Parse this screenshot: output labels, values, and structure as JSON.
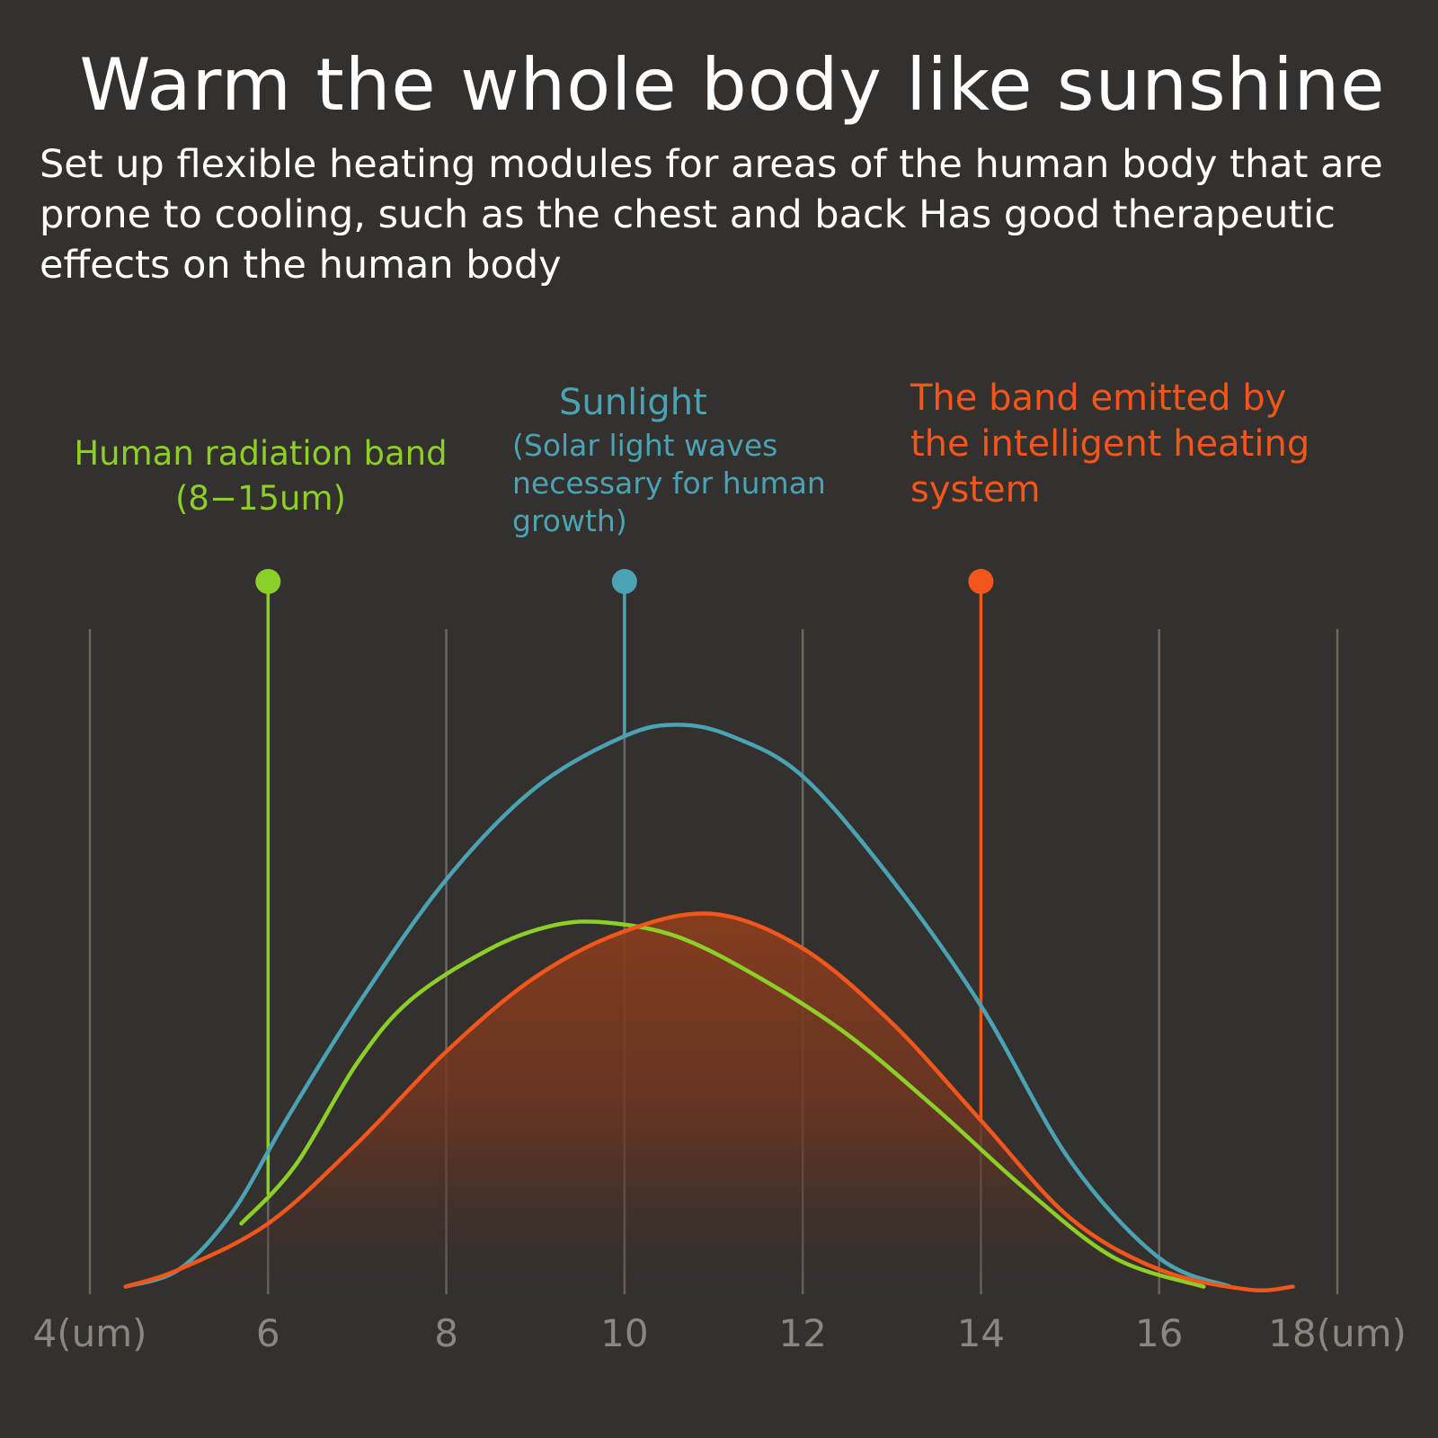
{
  "title": "Warm the whole body like sunshine",
  "subtitle": "Set up flexible heating modules for areas of the human body that are prone to cooling, such as the chest and back Has good therapeutic effects on the human body",
  "colors": {
    "background": "#34302d",
    "human": "#8ccf28",
    "sunlight": "#4aa3b4",
    "heating": "#f2561c",
    "grid": "#6a6663",
    "tick": "#8a8683"
  },
  "chart_data": {
    "type": "line",
    "title": "",
    "xlabel": "",
    "ylabel": "",
    "xlim": [
      4,
      18
    ],
    "xticks": [
      {
        "value": 4,
        "label": "4(um)"
      },
      {
        "value": 6,
        "label": "6"
      },
      {
        "value": 8,
        "label": "8"
      },
      {
        "value": 10,
        "label": "10"
      },
      {
        "value": 12,
        "label": "12"
      },
      {
        "value": 14,
        "label": "14"
      },
      {
        "value": 16,
        "label": "16"
      },
      {
        "value": 18,
        "label": "18(um)"
      }
    ],
    "grid": true,
    "y_axis_shown": false,
    "series": [
      {
        "key": "sunlight",
        "name": "Sunlight",
        "description": "(Solar light waves necessary for human growth)",
        "color": "#4aa3b4",
        "marker_x": 10,
        "fill": false,
        "points": [
          [
            4.4,
            0.01
          ],
          [
            5,
            0.04
          ],
          [
            5.6,
            0.14
          ],
          [
            6.2,
            0.3
          ],
          [
            7,
            0.5
          ],
          [
            8,
            0.72
          ],
          [
            9,
            0.88
          ],
          [
            10,
            0.97
          ],
          [
            10.6,
            0.99
          ],
          [
            11.2,
            0.97
          ],
          [
            12,
            0.9
          ],
          [
            13,
            0.72
          ],
          [
            14,
            0.5
          ],
          [
            15,
            0.23
          ],
          [
            16,
            0.06
          ],
          [
            16.8,
            0.01
          ]
        ]
      },
      {
        "key": "human",
        "name": "Human radiation band",
        "description": "(8−15um)",
        "color": "#8ccf28",
        "marker_x": 6,
        "fill": false,
        "points": [
          [
            5.7,
            0.12
          ],
          [
            6.3,
            0.22
          ],
          [
            7,
            0.4
          ],
          [
            7.6,
            0.51
          ],
          [
            8.5,
            0.6
          ],
          [
            9.2,
            0.64
          ],
          [
            9.8,
            0.645
          ],
          [
            10.6,
            0.62
          ],
          [
            11.5,
            0.55
          ],
          [
            12.5,
            0.45
          ],
          [
            13.5,
            0.32
          ],
          [
            14.5,
            0.18
          ],
          [
            15.5,
            0.06
          ],
          [
            16.5,
            0.01
          ]
        ]
      },
      {
        "key": "heating",
        "name": "The band emitted by the intelligent heating system",
        "description": "",
        "color": "#f2561c",
        "marker_x": 14,
        "fill": true,
        "points": [
          [
            4.4,
            0.01
          ],
          [
            5,
            0.04
          ],
          [
            6,
            0.12
          ],
          [
            7,
            0.26
          ],
          [
            8,
            0.42
          ],
          [
            9,
            0.55
          ],
          [
            10,
            0.63
          ],
          [
            11,
            0.66
          ],
          [
            12,
            0.6
          ],
          [
            13,
            0.47
          ],
          [
            14,
            0.3
          ],
          [
            15,
            0.13
          ],
          [
            16,
            0.04
          ],
          [
            17,
            0.005
          ],
          [
            17.5,
            0.01
          ]
        ]
      }
    ]
  }
}
